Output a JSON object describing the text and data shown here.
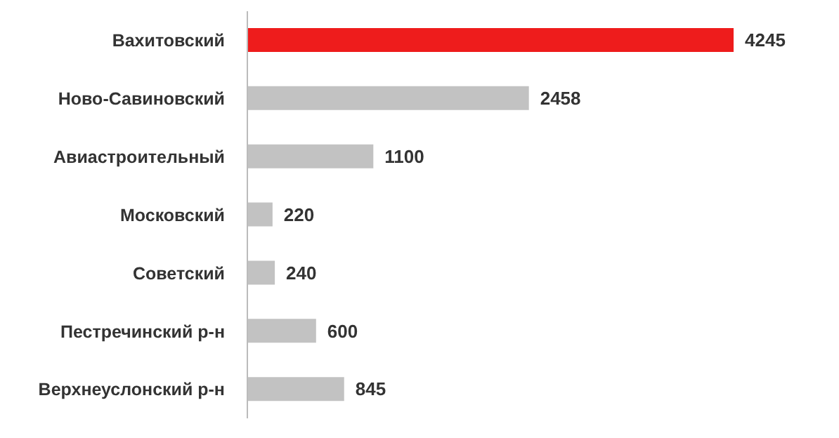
{
  "chart_data": {
    "type": "bar",
    "orientation": "horizontal",
    "categories": [
      "Вахитовский",
      "Ново-Савиновский",
      "Авиастроительный",
      "Московский",
      "Советский",
      "Пестречинский р-н",
      "Верхнеуслонский р-н"
    ],
    "values": [
      4245,
      2458,
      1100,
      220,
      240,
      600,
      845
    ],
    "colors": [
      "#ee1c1c",
      "#c2c2c2",
      "#c2c2c2",
      "#c2c2c2",
      "#c2c2c2",
      "#c2c2c2",
      "#c2c2c2"
    ],
    "data_labels": true,
    "grid": false,
    "legend": false
  }
}
